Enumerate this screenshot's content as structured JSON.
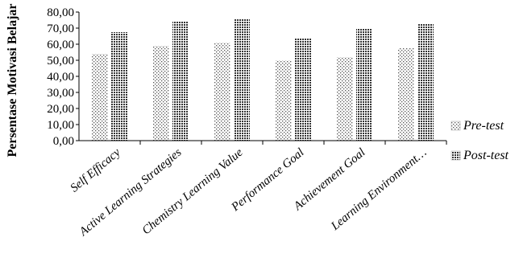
{
  "chart_data": {
    "type": "bar",
    "title": "",
    "xlabel": "",
    "ylabel": "Persentase Motivasi Belajar",
    "ylim": [
      0,
      80
    ],
    "yticks": [
      "0,00",
      "10,00",
      "20,00",
      "30,00",
      "40,00",
      "50,00",
      "60,00",
      "70,00",
      "80,00"
    ],
    "categories": [
      "Self Efficacy",
      "Active Learning Strategies",
      "Chemistry Learning Value",
      "Performance Goal",
      "Achievement Goal",
      "Learning Environment…"
    ],
    "series": [
      {
        "name": "Pre-test",
        "values": [
          54,
          59,
          61,
          50,
          52,
          57.5
        ]
      },
      {
        "name": "Post-test",
        "values": [
          67.5,
          74,
          75.5,
          63.5,
          70,
          72.5
        ]
      }
    ],
    "grid": false,
    "legend_position": "right"
  }
}
